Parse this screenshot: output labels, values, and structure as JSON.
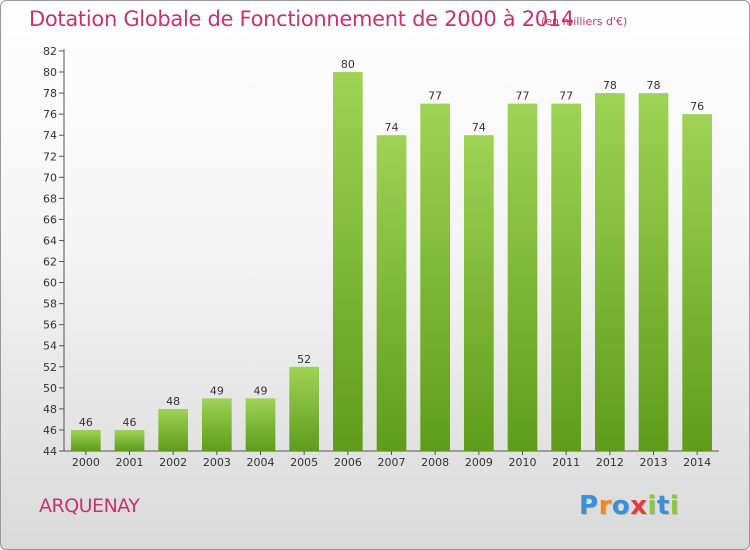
{
  "title": "Dotation Globale de Fonctionnement de 2000 à 2014",
  "subtitle": "(en milliers d'€)",
  "commune": "ARQUENAY",
  "logo": {
    "letters": [
      "P",
      "r",
      "o",
      "x",
      "i",
      "t",
      "i"
    ],
    "colors": [
      "#3a8fd8",
      "#f08a1c",
      "#3a8fd8",
      "#e23c3c",
      "#8cc63f",
      "#3a8fd8",
      "#8cc63f"
    ]
  },
  "colors": {
    "title": "#c8336e",
    "bar_top": "#9fd356",
    "bar_bottom": "#5f9c1c",
    "axis": "#555555",
    "grid": "#c8c8c8"
  },
  "chart_data": {
    "type": "bar",
    "categories": [
      "2000",
      "2001",
      "2002",
      "2003",
      "2004",
      "2005",
      "2006",
      "2007",
      "2008",
      "2009",
      "2010",
      "2011",
      "2012",
      "2013",
      "2014"
    ],
    "values": [
      46,
      46,
      48,
      49,
      49,
      52,
      80,
      74,
      77,
      74,
      77,
      77,
      78,
      78,
      76
    ],
    "title": "Dotation Globale de Fonctionnement de 2000 à 2014",
    "subtitle": "(en milliers d'€)",
    "ylim": [
      44,
      82
    ],
    "yticks": [
      44,
      46,
      48,
      50,
      52,
      54,
      56,
      58,
      60,
      62,
      64,
      66,
      68,
      70,
      72,
      74,
      76,
      78,
      80,
      82
    ],
    "grid": false,
    "legend": "none"
  }
}
